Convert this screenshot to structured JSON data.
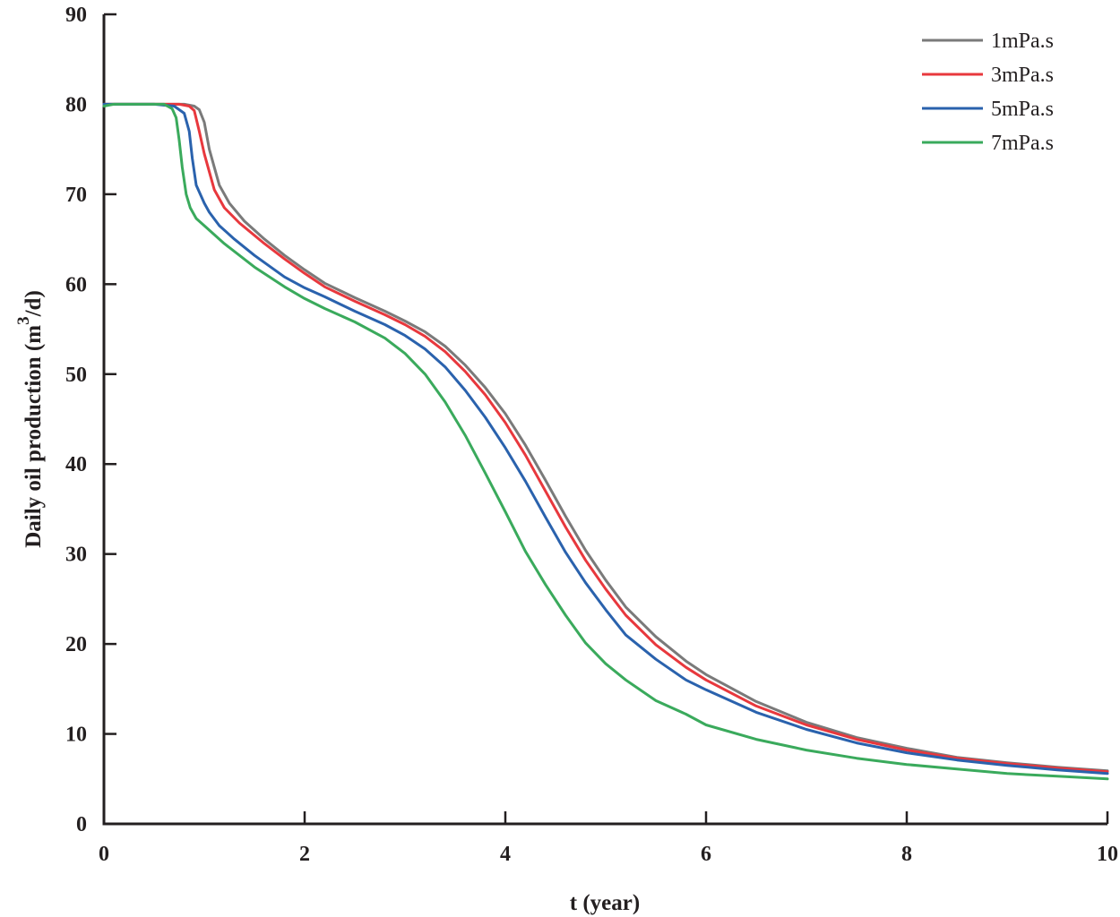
{
  "chart_data": {
    "type": "line",
    "title": "",
    "xlabel": "t (year)",
    "ylabel_main": "Daily oil production  (m",
    "ylabel_sup": "3",
    "ylabel_tail": "/d)",
    "xlim": [
      0,
      10
    ],
    "ylim": [
      0,
      90
    ],
    "xticks": [
      0,
      2,
      4,
      6,
      8,
      10
    ],
    "yticks": [
      0,
      10,
      20,
      30,
      40,
      50,
      60,
      70,
      80,
      90
    ],
    "legend_position": "top-right",
    "grid": false,
    "series": [
      {
        "name": "1mPa.s",
        "color": "#7a7a7a",
        "x": [
          0,
          0.5,
          0.8,
          0.9,
          0.95,
          1.0,
          1.05,
          1.1,
          1.15,
          1.25,
          1.4,
          1.6,
          1.8,
          2.0,
          2.2,
          2.5,
          2.8,
          3.0,
          3.2,
          3.4,
          3.6,
          3.8,
          4.0,
          4.2,
          4.4,
          4.6,
          4.8,
          5.0,
          5.2,
          5.5,
          5.8,
          6.0,
          6.5,
          7.0,
          7.5,
          8.0,
          8.5,
          9.0,
          9.5,
          10.0
        ],
        "y": [
          80,
          80,
          80,
          79.8,
          79.4,
          78,
          75,
          73,
          71,
          69,
          67,
          65,
          63.2,
          61.6,
          60.1,
          58.5,
          57,
          55.9,
          54.7,
          53.1,
          51,
          48.5,
          45.6,
          42.1,
          38.2,
          34.2,
          30.4,
          27.1,
          24.1,
          20.8,
          18.1,
          16.6,
          13.6,
          11.3,
          9.6,
          8.4,
          7.4,
          6.8,
          6.3,
          5.9
        ]
      },
      {
        "name": "3mPa.s",
        "color": "#e8383d",
        "x": [
          0,
          0.5,
          0.75,
          0.85,
          0.9,
          0.95,
          1.0,
          1.05,
          1.1,
          1.2,
          1.35,
          1.6,
          1.8,
          2.0,
          2.2,
          2.5,
          2.8,
          3.0,
          3.2,
          3.4,
          3.6,
          3.8,
          4.0,
          4.2,
          4.4,
          4.6,
          4.8,
          5.0,
          5.2,
          5.5,
          5.8,
          6.0,
          6.5,
          7.0,
          7.5,
          8.0,
          8.5,
          9.0,
          9.5,
          10.0
        ],
        "y": [
          80,
          80,
          80,
          79.8,
          79.3,
          77,
          74.5,
          72.5,
          70.5,
          68.5,
          66.8,
          64.5,
          62.8,
          61.2,
          59.7,
          58.1,
          56.6,
          55.5,
          54.2,
          52.5,
          50.3,
          47.7,
          44.6,
          41,
          37,
          33,
          29.3,
          26.1,
          23.2,
          19.9,
          17.4,
          16.0,
          13.1,
          11.0,
          9.4,
          8.2,
          7.3,
          6.7,
          6.2,
          5.8
        ]
      },
      {
        "name": "5mPa.s",
        "color": "#2a62ad",
        "x": [
          0,
          0.5,
          0.7,
          0.8,
          0.85,
          0.88,
          0.92,
          1.0,
          1.05,
          1.15,
          1.3,
          1.5,
          1.8,
          2.0,
          2.2,
          2.5,
          2.8,
          3.0,
          3.2,
          3.4,
          3.6,
          3.8,
          4.0,
          4.2,
          4.4,
          4.6,
          4.8,
          5.0,
          5.2,
          5.5,
          5.8,
          6.0,
          6.5,
          7.0,
          7.5,
          8.0,
          8.5,
          9.0,
          9.5,
          10.0
        ],
        "y": [
          80,
          80,
          79.8,
          79,
          77,
          74,
          71,
          69,
          68,
          66.5,
          65,
          63.2,
          60.8,
          59.6,
          58.6,
          57,
          55.5,
          54.3,
          52.8,
          50.8,
          48.2,
          45.2,
          41.8,
          38.1,
          34.1,
          30.2,
          26.8,
          23.8,
          21.0,
          18.3,
          16.0,
          14.9,
          12.4,
          10.5,
          9.0,
          7.9,
          7.1,
          6.5,
          6.0,
          5.6
        ]
      },
      {
        "name": "7mPa.s",
        "color": "#3aaa5c",
        "x": [
          0,
          0.05,
          0.1,
          0.6,
          0.68,
          0.72,
          0.75,
          0.78,
          0.82,
          0.86,
          0.92,
          1.0,
          1.2,
          1.5,
          1.8,
          2.0,
          2.2,
          2.5,
          2.8,
          3.0,
          3.2,
          3.4,
          3.6,
          3.8,
          4.0,
          4.2,
          4.4,
          4.6,
          4.8,
          5.0,
          5.2,
          5.5,
          5.8,
          6.0,
          6.5,
          7.0,
          7.5,
          8.0,
          8.5,
          9.0,
          9.5,
          10.0
        ],
        "y": [
          79.8,
          79.9,
          80,
          80,
          79.5,
          78.5,
          76,
          73,
          70,
          68.5,
          67.3,
          66.5,
          64.5,
          61.9,
          59.7,
          58.4,
          57.3,
          55.8,
          54,
          52.3,
          50.0,
          46.9,
          43.2,
          39.0,
          34.7,
          30.3,
          26.6,
          23.2,
          20.1,
          17.8,
          16.0,
          13.7,
          12.2,
          11.0,
          9.4,
          8.2,
          7.3,
          6.6,
          6.1,
          5.6,
          5.3,
          5.0
        ]
      }
    ]
  }
}
